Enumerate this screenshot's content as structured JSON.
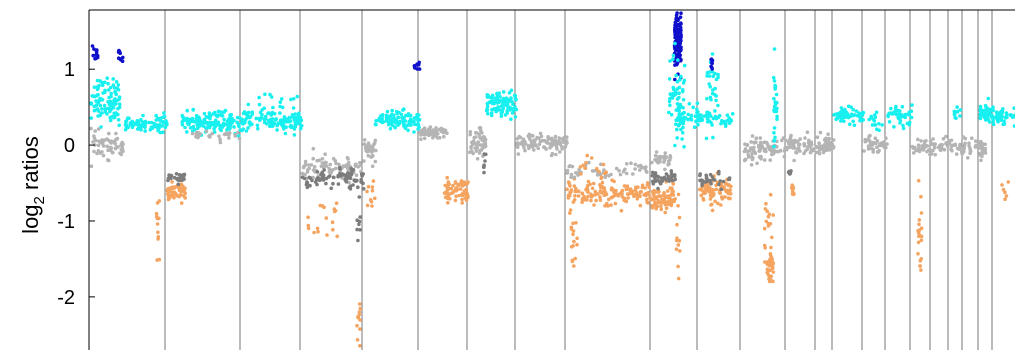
{
  "chart_data": {
    "type": "scatter",
    "ylabel_base": "log",
    "ylabel_sub": "2",
    "ylabel_rest": " ratios",
    "yticks": [
      1,
      0,
      -1,
      -2
    ],
    "ytick_labels": [
      "1",
      "0",
      "-1",
      "-2"
    ],
    "ylim": [
      -2.7,
      1.78
    ],
    "grid_vertical": true,
    "colors": {
      "high_gain": "#1010cc",
      "gain": "#18f0f0",
      "neutral": "#b4b4b4",
      "loss_dark": "#7c7c7c",
      "loss": "#f5a460"
    },
    "segments": [
      {
        "seg": 1,
        "clusters": [
          {
            "cls": "gain",
            "x0": 0.0,
            "x1": 0.38,
            "y": 0.6,
            "sd": 0.15,
            "n": 100
          },
          {
            "cls": "high_gain",
            "x0": 0.02,
            "x1": 0.09,
            "y": 1.2,
            "sd": 0.05,
            "n": 12
          },
          {
            "cls": "high_gain",
            "x0": 0.36,
            "x1": 0.42,
            "y": 1.15,
            "sd": 0.05,
            "n": 10
          },
          {
            "cls": "gain",
            "x0": 0.45,
            "x1": 1.0,
            "y": 0.28,
            "sd": 0.05,
            "n": 80
          },
          {
            "cls": "neutral",
            "x0": 0.0,
            "x1": 0.45,
            "y": 0.0,
            "sd": 0.08,
            "n": 60
          }
        ]
      },
      {
        "seg": 2,
        "clusters": [
          {
            "cls": "loss",
            "x0": 0.0,
            "x1": 0.25,
            "y": -0.62,
            "sd": 0.06,
            "n": 60
          },
          {
            "cls": "loss_dark",
            "x0": 0.0,
            "x1": 0.25,
            "y": -0.43,
            "sd": 0.03,
            "n": 25
          },
          {
            "cls": "loss",
            "x0": -0.14,
            "x1": -0.1,
            "y": -1.2,
            "sd": 0.3,
            "n": 12
          },
          {
            "cls": "gain",
            "x0": 0.2,
            "x1": 1.0,
            "y": 0.3,
            "sd": 0.07,
            "n": 140
          },
          {
            "cls": "neutral",
            "x0": 0.3,
            "x1": 1.0,
            "y": 0.12,
            "sd": 0.03,
            "n": 30
          }
        ]
      },
      {
        "seg": 3,
        "clusters": [
          {
            "cls": "gain",
            "x0": 0.0,
            "x1": 1.0,
            "y": 0.32,
            "sd": 0.07,
            "n": 130
          },
          {
            "cls": "gain",
            "x0": 0.2,
            "x1": 1.0,
            "y": 0.6,
            "sd": 0.05,
            "n": 12
          }
        ]
      },
      {
        "seg": 4,
        "clusters": [
          {
            "cls": "neutral",
            "x0": 0.0,
            "x1": 1.0,
            "y": -0.3,
            "sd": 0.08,
            "n": 80
          },
          {
            "cls": "loss_dark",
            "x0": 0.0,
            "x1": 1.0,
            "y": -0.45,
            "sd": 0.06,
            "n": 80
          },
          {
            "cls": "loss",
            "x0": 0.05,
            "x1": 0.6,
            "y": -0.95,
            "sd": 0.2,
            "n": 18
          },
          {
            "cls": "loss",
            "x0": 0.88,
            "x1": 0.94,
            "y": -2.3,
            "sd": 0.2,
            "n": 12
          },
          {
            "cls": "loss_dark",
            "x0": 0.88,
            "x1": 0.96,
            "y": -1.0,
            "sd": 0.2,
            "n": 8
          }
        ]
      },
      {
        "seg": 5,
        "clusters": [
          {
            "cls": "neutral",
            "x0": 0.0,
            "x1": 0.22,
            "y": -0.05,
            "sd": 0.08,
            "n": 30
          },
          {
            "cls": "gain",
            "x0": 0.2,
            "x1": 1.0,
            "y": 0.33,
            "sd": 0.06,
            "n": 100
          },
          {
            "cls": "loss",
            "x0": 0.05,
            "x1": 0.2,
            "y": -0.65,
            "sd": 0.15,
            "n": 10
          },
          {
            "cls": "high_gain",
            "x0": 0.9,
            "x1": 1.0,
            "y": 1.0,
            "sd": 0.05,
            "n": 10
          }
        ]
      },
      {
        "seg": 6,
        "clusters": [
          {
            "cls": "neutral",
            "x0": 0.0,
            "x1": 0.55,
            "y": 0.15,
            "sd": 0.04,
            "n": 60
          },
          {
            "cls": "loss",
            "x0": 0.5,
            "x1": 1.0,
            "y": -0.6,
            "sd": 0.08,
            "n": 70
          }
        ]
      },
      {
        "seg": 7,
        "clusters": [
          {
            "cls": "neutral",
            "x0": 0.0,
            "x1": 0.35,
            "y": 0.0,
            "sd": 0.1,
            "n": 50
          },
          {
            "cls": "gain",
            "x0": 0.35,
            "x1": 1.0,
            "y": 0.55,
            "sd": 0.08,
            "n": 90
          },
          {
            "cls": "loss_dark",
            "x0": 0.3,
            "x1": 0.35,
            "y": -0.25,
            "sd": 0.06,
            "n": 8
          }
        ]
      },
      {
        "seg": 8,
        "clusters": [
          {
            "cls": "neutral",
            "x0": 0.0,
            "x1": 1.0,
            "y": 0.02,
            "sd": 0.06,
            "n": 100
          }
        ]
      },
      {
        "seg": 9,
        "clusters": [
          {
            "cls": "loss",
            "x0": 0.0,
            "x1": 1.0,
            "y": -0.63,
            "sd": 0.08,
            "n": 140
          },
          {
            "cls": "neutral",
            "x0": 0.0,
            "x1": 1.0,
            "y": -0.35,
            "sd": 0.06,
            "n": 50
          },
          {
            "cls": "loss",
            "x0": 0.05,
            "x1": 0.12,
            "y": -1.3,
            "sd": 0.2,
            "n": 15
          },
          {
            "cls": "loss",
            "x0": 0.15,
            "x1": 0.5,
            "y": -0.25,
            "sd": 0.08,
            "n": 15
          }
        ]
      },
      {
        "seg": 10,
        "clusters": [
          {
            "cls": "loss",
            "x0": 0.0,
            "x1": 0.5,
            "y": -0.7,
            "sd": 0.08,
            "n": 80
          },
          {
            "cls": "loss_dark",
            "x0": 0.0,
            "x1": 0.5,
            "y": -0.45,
            "sd": 0.05,
            "n": 40
          },
          {
            "cls": "neutral",
            "x0": 0.05,
            "x1": 0.4,
            "y": -0.2,
            "sd": 0.06,
            "n": 25
          },
          {
            "cls": "high_gain",
            "x0": 0.48,
            "x1": 0.62,
            "y": 1.35,
            "sd": 0.2,
            "n": 140
          },
          {
            "cls": "gain",
            "x0": 0.35,
            "x1": 0.7,
            "y": 0.6,
            "sd": 0.35,
            "n": 60
          },
          {
            "cls": "loss",
            "x0": 0.52,
            "x1": 0.6,
            "y": -1.3,
            "sd": 0.3,
            "n": 12
          },
          {
            "cls": "gain",
            "x0": 0.55,
            "x1": 1.0,
            "y": 0.35,
            "sd": 0.08,
            "n": 40
          }
        ]
      },
      {
        "seg": 11,
        "clusters": [
          {
            "cls": "loss",
            "x0": 0.0,
            "x1": 0.75,
            "y": -0.62,
            "sd": 0.08,
            "n": 90
          },
          {
            "cls": "gain",
            "x0": 0.0,
            "x1": 0.8,
            "y": 0.35,
            "sd": 0.06,
            "n": 40
          },
          {
            "cls": "gain",
            "x0": 0.15,
            "x1": 0.45,
            "y": 0.65,
            "sd": 0.3,
            "n": 30
          },
          {
            "cls": "loss_dark",
            "x0": 0.0,
            "x1": 0.75,
            "y": -0.45,
            "sd": 0.04,
            "n": 30
          },
          {
            "cls": "high_gain",
            "x0": 0.28,
            "x1": 0.32,
            "y": 1.1,
            "sd": 0.04,
            "n": 8
          }
        ]
      },
      {
        "seg": 12,
        "clusters": [
          {
            "cls": "neutral",
            "x0": 0.05,
            "x1": 1.0,
            "y": -0.05,
            "sd": 0.08,
            "n": 90
          },
          {
            "cls": "loss",
            "x0": 0.55,
            "x1": 0.7,
            "y": -1.6,
            "sd": 0.1,
            "n": 30
          },
          {
            "cls": "loss",
            "x0": 0.5,
            "x1": 0.7,
            "y": -1.0,
            "sd": 0.3,
            "n": 20
          },
          {
            "cls": "gain",
            "x0": 0.7,
            "x1": 0.78,
            "y": 0.55,
            "sd": 0.3,
            "n": 25
          }
        ]
      },
      {
        "seg": 13,
        "clusters": [
          {
            "cls": "neutral",
            "x0": 0.0,
            "x1": 1.0,
            "y": 0.0,
            "sd": 0.06,
            "n": 60
          },
          {
            "cls": "loss",
            "x0": 0.15,
            "x1": 0.25,
            "y": -0.6,
            "sd": 0.08,
            "n": 10
          },
          {
            "cls": "loss_dark",
            "x0": 0.05,
            "x1": 0.15,
            "y": -0.35,
            "sd": 0.04,
            "n": 6
          }
        ]
      },
      {
        "seg": 14,
        "clusters": [
          {
            "cls": "neutral",
            "x0": 0.0,
            "x1": 1.0,
            "y": 0.0,
            "sd": 0.06,
            "n": 50
          }
        ]
      },
      {
        "seg": 15,
        "clusters": [
          {
            "cls": "gain",
            "x0": 0.0,
            "x1": 1.0,
            "y": 0.4,
            "sd": 0.06,
            "n": 60
          }
        ]
      },
      {
        "seg": 16,
        "clusters": [
          {
            "cls": "neutral",
            "x0": 0.0,
            "x1": 1.0,
            "y": 0.0,
            "sd": 0.06,
            "n": 40
          },
          {
            "cls": "gain",
            "x0": 0.2,
            "x1": 0.8,
            "y": 0.3,
            "sd": 0.05,
            "n": 15
          }
        ]
      },
      {
        "seg": 17,
        "clusters": [
          {
            "cls": "gain",
            "x0": 0.0,
            "x1": 1.0,
            "y": 0.4,
            "sd": 0.06,
            "n": 40
          }
        ]
      },
      {
        "seg": 18,
        "clusters": [
          {
            "cls": "neutral",
            "x0": 0.0,
            "x1": 1.0,
            "y": -0.02,
            "sd": 0.06,
            "n": 30
          },
          {
            "cls": "loss",
            "x0": 0.3,
            "x1": 0.5,
            "y": -1.2,
            "sd": 0.3,
            "n": 20
          }
        ]
      },
      {
        "seg": 19,
        "clusters": [
          {
            "cls": "neutral",
            "x0": 0.0,
            "x1": 1.0,
            "y": 0.0,
            "sd": 0.06,
            "n": 25
          }
        ]
      },
      {
        "seg": 20,
        "clusters": [
          {
            "cls": "neutral",
            "x0": 0.0,
            "x1": 1.0,
            "y": -0.05,
            "sd": 0.06,
            "n": 20
          },
          {
            "cls": "gain",
            "x0": 0.3,
            "x1": 0.8,
            "y": 0.4,
            "sd": 0.05,
            "n": 10
          }
        ]
      },
      {
        "seg": 21,
        "clusters": [
          {
            "cls": "neutral",
            "x0": 0.0,
            "x1": 1.0,
            "y": 0.0,
            "sd": 0.06,
            "n": 20
          }
        ]
      },
      {
        "seg": 22,
        "clusters": [
          {
            "cls": "gain",
            "x0": 0.0,
            "x1": 1.0,
            "y": 0.4,
            "sd": 0.06,
            "n": 60
          },
          {
            "cls": "neutral",
            "x0": 0.0,
            "x1": 0.4,
            "y": -0.05,
            "sd": 0.06,
            "n": 20
          }
        ]
      },
      {
        "seg": 23,
        "clusters": [
          {
            "cls": "gain",
            "x0": 0.0,
            "x1": 1.0,
            "y": 0.38,
            "sd": 0.06,
            "n": 40
          },
          {
            "cls": "loss",
            "x0": 0.3,
            "x1": 0.7,
            "y": -0.6,
            "sd": 0.1,
            "n": 6
          }
        ]
      }
    ]
  }
}
